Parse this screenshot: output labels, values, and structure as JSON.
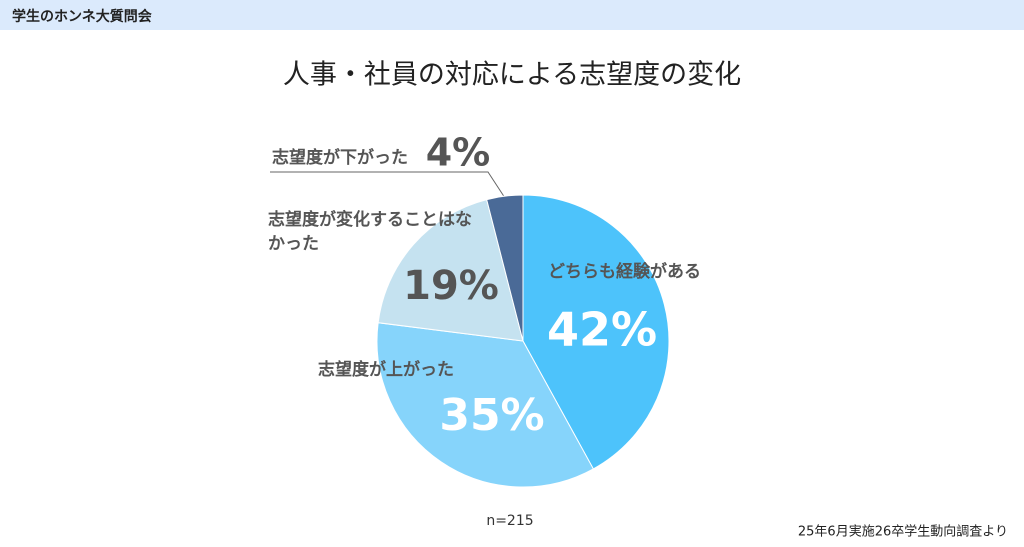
{
  "header": {
    "title": "学生のホンネ大質問会"
  },
  "chart_data": {
    "type": "pie",
    "title": "人事・社員の対応による志望度の変化",
    "categories": [
      "どちらも経験がある",
      "志望度が上がった",
      "志望度が変化することはなかった",
      "志望度が下がった"
    ],
    "values": [
      42,
      35,
      19,
      4
    ],
    "value_labels": [
      "42%",
      "35%",
      "19%",
      "4%"
    ],
    "colors": [
      "#4dc3fb",
      "#86d4fb",
      "#c5e2f0",
      "#4a6a97"
    ],
    "note": "n=215",
    "source": "25年6月実施26卒学生動向調査より"
  }
}
